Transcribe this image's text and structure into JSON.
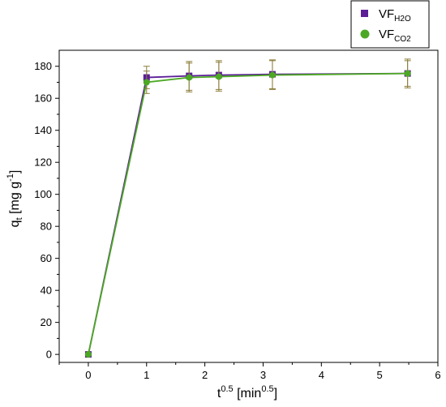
{
  "chart_data": {
    "type": "line",
    "xlabel": {
      "base": "t",
      "sup": "0.5",
      "mid": " [min",
      "sup2": "0.5",
      "end": "]"
    },
    "ylabel": {
      "base": "q",
      "sub": "t",
      "mid": " [mg g",
      "sup": "-1",
      "end": "]"
    },
    "xlim": [
      -0.5,
      6
    ],
    "ylim": [
      -5,
      190
    ],
    "x_ticks": [
      0,
      1,
      2,
      3,
      4,
      5,
      6
    ],
    "y_ticks": [
      0,
      20,
      40,
      60,
      80,
      100,
      120,
      140,
      160,
      180
    ],
    "grid": false,
    "legend_position": "top-right",
    "series": [
      {
        "name": "VF",
        "name_sub": "H₂O",
        "name_sub_display": "H2O",
        "marker": "square",
        "color": "#5b1e97",
        "x": [
          0,
          1,
          1.73,
          2.24,
          3.16,
          5.48
        ],
        "y": [
          0,
          173,
          174,
          174.5,
          175,
          175.5
        ],
        "yerr": [
          0,
          7,
          9,
          9,
          9,
          8
        ]
      },
      {
        "name": "VF",
        "name_sub": "CO₂",
        "name_sub_display": "CO2",
        "marker": "circle",
        "color": "#4ca823",
        "x": [
          0,
          1,
          1.73,
          2.24,
          3.16,
          5.48
        ],
        "y": [
          0,
          170,
          173,
          173.5,
          174.5,
          175.5
        ],
        "yerr": [
          0,
          7,
          9,
          9,
          9,
          9
        ]
      }
    ]
  }
}
